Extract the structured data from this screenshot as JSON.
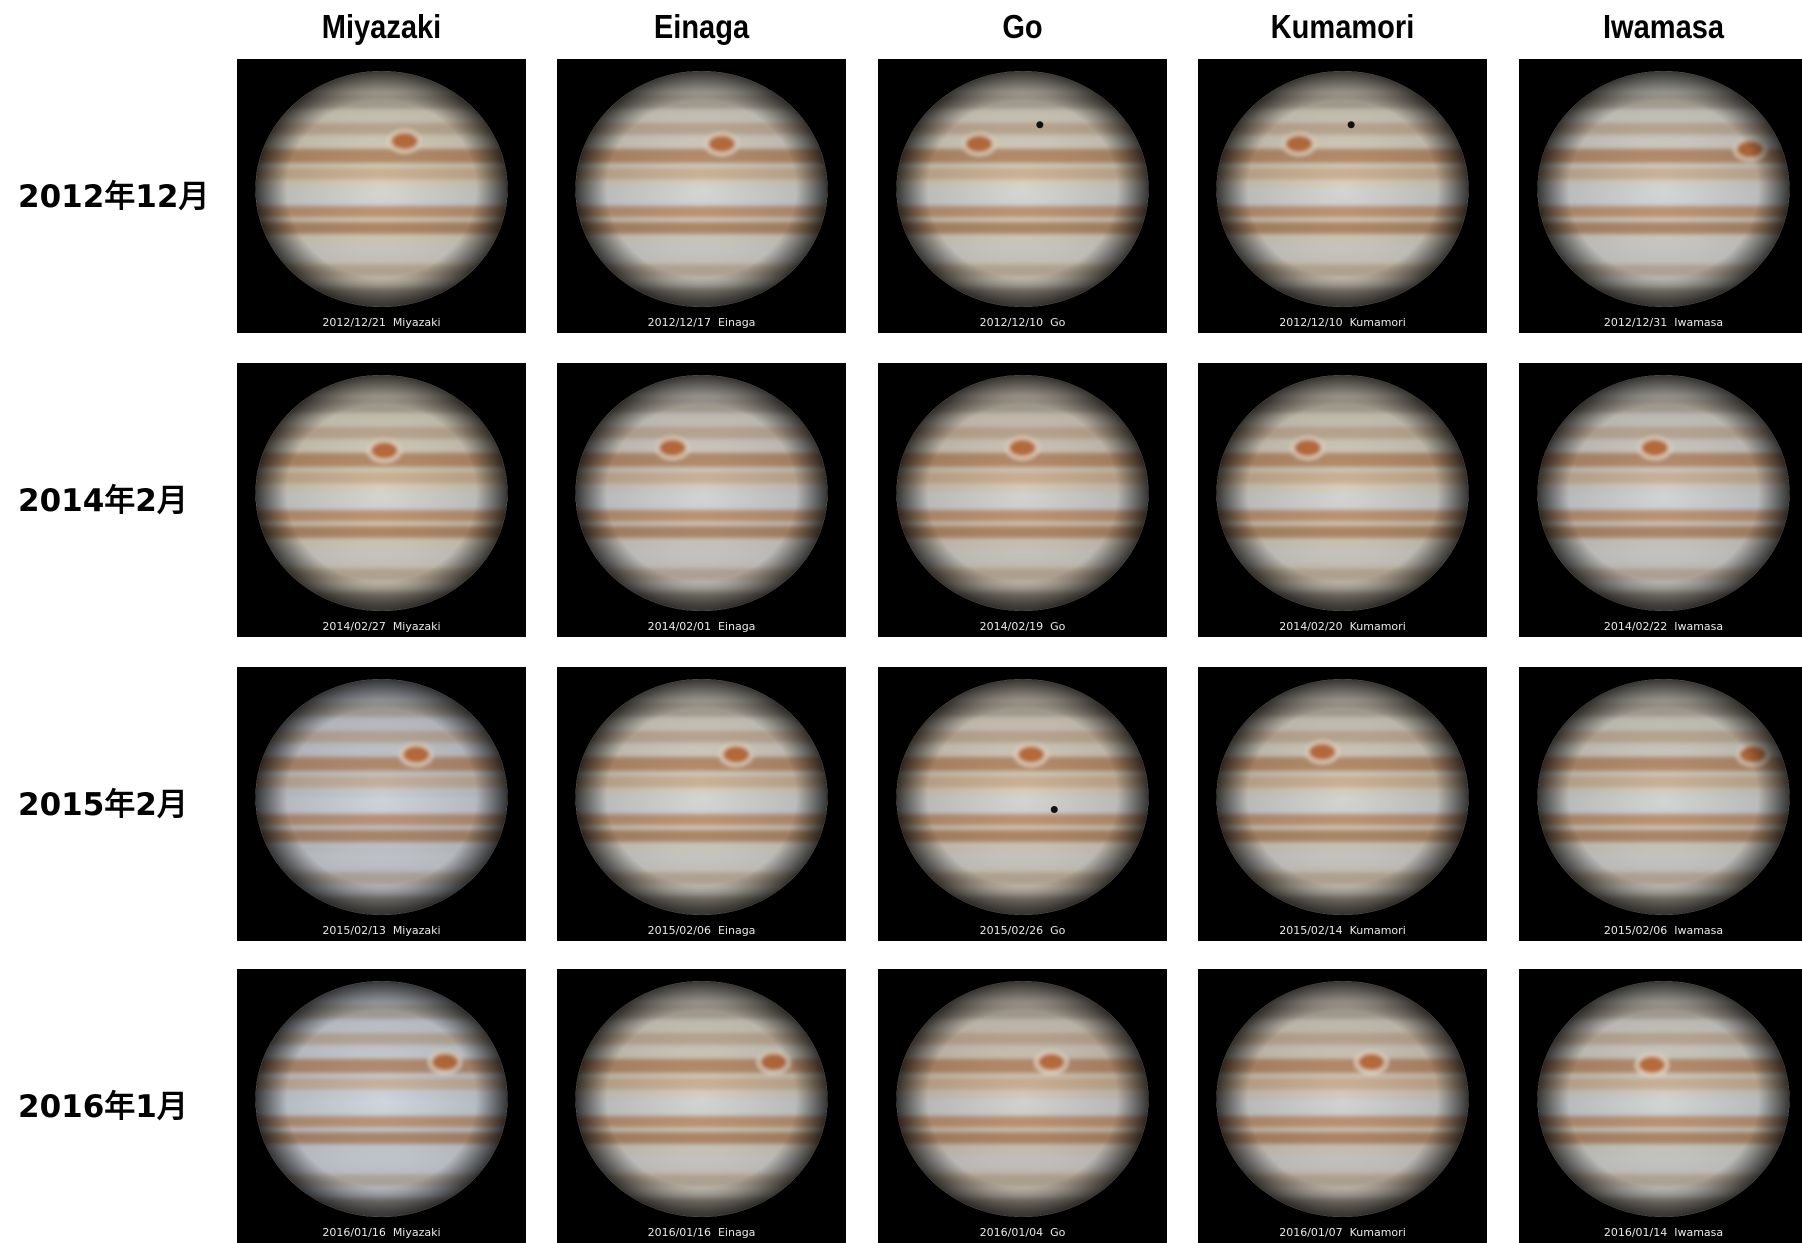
{
  "observers": [
    "Miyazaki",
    "Einaga",
    "Go",
    "Kumamori",
    "Iwamasa"
  ],
  "periods": [
    "2012年12月",
    "2014年2月",
    "2015年2月",
    "2016年1月"
  ],
  "captions": [
    [
      "2012/12/21  Miyazaki",
      "2012/12/17  Einaga",
      "2012/12/10  Go",
      "2012/12/10  Kumamori",
      "2012/12/31  Iwamasa"
    ],
    [
      "2014/02/27  Miyazaki",
      "2014/02/01  Einaga",
      "2014/02/19  Go",
      "2014/02/20  Kumamori",
      "2014/02/22  Iwamasa"
    ],
    [
      "2015/02/13  Miyazaki",
      "2015/02/06  Einaga",
      "2015/02/26  Go",
      "2015/02/14  Kumamori",
      "2015/02/06  Iwamasa"
    ],
    [
      "2016/01/16  Miyazaki",
      "2016/01/16  Einaga",
      "2016/01/04  Go",
      "2016/01/07  Kumamori",
      "2016/01/14  Iwamasa"
    ]
  ],
  "images": [
    [
      {
        "tint": "#d9d2c0",
        "spot_x": 0.58,
        "spot_y": 0.3,
        "moon": false
      },
      {
        "tint": "#d6d2c7",
        "spot_x": 0.57,
        "spot_y": 0.31,
        "moon": false
      },
      {
        "tint": "#d9d3c4",
        "spot_x": 0.35,
        "spot_y": 0.31,
        "moon": true,
        "moon_x": 0.56,
        "moon_y": 0.24
      },
      {
        "tint": "#d8d1c1",
        "spot_x": 0.35,
        "spot_y": 0.31,
        "moon": true,
        "moon_x": 0.53,
        "moon_y": 0.24
      },
      {
        "tint": "#d5d3cb",
        "spot_x": 0.8,
        "spot_y": 0.33,
        "moon": false
      }
    ],
    [
      {
        "tint": "#d8d1bf",
        "spot_x": 0.51,
        "spot_y": 0.32,
        "moon": false
      },
      {
        "tint": "#d4cfc8",
        "spot_x": 0.4,
        "spot_y": 0.31,
        "moon": false
      },
      {
        "tint": "#d5ccbd",
        "spot_x": 0.5,
        "spot_y": 0.31,
        "moon": false
      },
      {
        "tint": "#d6cfbf",
        "spot_x": 0.38,
        "spot_y": 0.31,
        "moon": false
      },
      {
        "tint": "#d2cfc9",
        "spot_x": 0.47,
        "spot_y": 0.31,
        "moon": false
      }
    ],
    [
      {
        "tint": "#c9ccd2",
        "spot_x": 0.62,
        "spot_y": 0.32,
        "moon": false
      },
      {
        "tint": "#d6d2c7",
        "spot_x": 0.62,
        "spot_y": 0.32,
        "moon": false
      },
      {
        "tint": "#d7cfc0",
        "spot_x": 0.53,
        "spot_y": 0.32,
        "moon": true,
        "moon_x": 0.61,
        "moon_y": 0.52
      },
      {
        "tint": "#d5cfc2",
        "spot_x": 0.43,
        "spot_y": 0.31,
        "moon": false
      },
      {
        "tint": "#d3d0c6",
        "spot_x": 0.81,
        "spot_y": 0.32,
        "moon": false
      }
    ],
    [
      {
        "tint": "#cdd2d9",
        "spot_x": 0.72,
        "spot_y": 0.34,
        "moon": false
      },
      {
        "tint": "#d4cfc3",
        "spot_x": 0.75,
        "spot_y": 0.34,
        "moon": false
      },
      {
        "tint": "#d2c9bc",
        "spot_x": 0.6,
        "spot_y": 0.34,
        "moon": false
      },
      {
        "tint": "#d3cbbf",
        "spot_x": 0.6,
        "spot_y": 0.34,
        "moon": false
      },
      {
        "tint": "#d2d0c8",
        "spot_x": 0.46,
        "spot_y": 0.35,
        "moon": false
      }
    ]
  ]
}
